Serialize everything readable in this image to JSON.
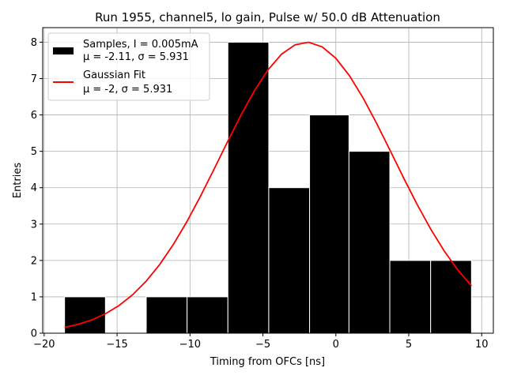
{
  "chart_data": {
    "type": "bar",
    "title": "Run 1955, channel5, lo gain, Pulse w/ 50.0 dB Attenuation",
    "xlabel": "Timing from OFCs [ns]",
    "ylabel": "Entries",
    "xlim": [
      -20.1,
      10.8
    ],
    "ylim": [
      0,
      8.4
    ],
    "xticks": [
      -20,
      -15,
      -10,
      -5,
      0,
      5,
      10
    ],
    "yticks": [
      0,
      1,
      2,
      3,
      4,
      5,
      6,
      7,
      8
    ],
    "grid": true,
    "legend_position": "top-left",
    "histogram": {
      "name": "Samples, I = 0.005mA",
      "stats": "μ = -2.11, σ = 5.931",
      "color": "#000000",
      "bins": [
        {
          "x0": -18.6,
          "x1": -15.8,
          "count": 1
        },
        {
          "x0": -15.8,
          "x1": -13.0,
          "count": 0
        },
        {
          "x0": -13.0,
          "x1": -10.2,
          "count": 1
        },
        {
          "x0": -10.2,
          "x1": -7.4,
          "count": 1
        },
        {
          "x0": -7.4,
          "x1": -4.6,
          "count": 8
        },
        {
          "x0": -4.6,
          "x1": -1.8,
          "count": 4
        },
        {
          "x0": -1.8,
          "x1": 0.9,
          "count": 6
        },
        {
          "x0": 0.9,
          "x1": 3.7,
          "count": 5
        },
        {
          "x0": 3.7,
          "x1": 6.5,
          "count": 2
        },
        {
          "x0": 6.5,
          "x1": 9.3,
          "count": 2
        }
      ]
    },
    "fit": {
      "name": "Gaussian Fit",
      "stats": "μ = -2, σ = 5.931",
      "color": "#ff0000",
      "mean": -2,
      "sigma": 5.931,
      "amplitude": 8.0,
      "x_range": [
        -18.6,
        9.3
      ]
    }
  }
}
